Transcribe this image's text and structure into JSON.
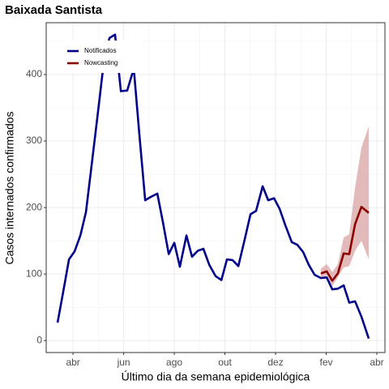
{
  "chart_data": {
    "type": "line",
    "title": "Baixada Santista",
    "xlabel": "Último dia da semana epidemiológica",
    "ylabel": "Casos internados confirmados",
    "xlim": [
      2.94,
      16.32
    ],
    "ylim": [
      -18,
      478
    ],
    "xticks": [
      {
        "value": 4,
        "label": "abr"
      },
      {
        "value": 6,
        "label": "jun"
      },
      {
        "value": 8,
        "label": "ago"
      },
      {
        "value": 10,
        "label": "out"
      },
      {
        "value": 12,
        "label": "dez"
      },
      {
        "value": 14,
        "label": "fev"
      },
      {
        "value": 16,
        "label": "abr"
      }
    ],
    "yticks": [
      0,
      100,
      200,
      300,
      400
    ],
    "grid": true,
    "legend": "top-left",
    "series": [
      {
        "name": "Notificados",
        "color": "#00008b",
        "x": [
          3.39,
          3.62,
          3.84,
          4.06,
          4.29,
          4.51,
          4.77,
          4.99,
          5.22,
          5.44,
          5.66,
          5.89,
          6.14,
          6.4,
          6.62,
          6.85,
          7.07,
          7.33,
          7.55,
          7.78,
          8.0,
          8.22,
          8.48,
          8.7,
          8.93,
          9.15,
          9.38,
          9.63,
          9.86,
          10.08,
          10.3,
          10.53,
          10.78,
          11.01,
          11.23,
          11.49,
          11.71,
          11.94,
          12.16,
          12.38,
          12.64,
          12.86,
          13.09,
          13.31,
          13.54,
          13.79,
          14.02,
          14.24,
          14.46,
          14.69,
          14.91,
          15.14,
          15.39,
          15.68
        ],
        "values": [
          27,
          75,
          122,
          134,
          158,
          193,
          275,
          345,
          420,
          455,
          460,
          375,
          376,
          409,
          310,
          211,
          216,
          221,
          178,
          130,
          147,
          111,
          158,
          126,
          135,
          138,
          114,
          97,
          91,
          122,
          121,
          112,
          152,
          190,
          195,
          232,
          211,
          214,
          198,
          174,
          148,
          144,
          133,
          114,
          99,
          94,
          95,
          77,
          78,
          83,
          57,
          59,
          36,
          3
        ]
      },
      {
        "name": "Nowcasting",
        "color": "#8b0000",
        "band_color": "#d9a3a3",
        "x": [
          13.79,
          14.02,
          14.24,
          14.46,
          14.69,
          14.91,
          15.14,
          15.39,
          15.68
        ],
        "values": [
          101,
          104,
          90,
          101,
          131,
          130,
          175,
          201,
          192
        ],
        "lower": [
          95,
          98,
          82,
          95,
          110,
          112,
          135,
          150,
          122
        ],
        "upper": [
          108,
          115,
          103,
          115,
          155,
          160,
          230,
          290,
          322
        ]
      }
    ]
  }
}
